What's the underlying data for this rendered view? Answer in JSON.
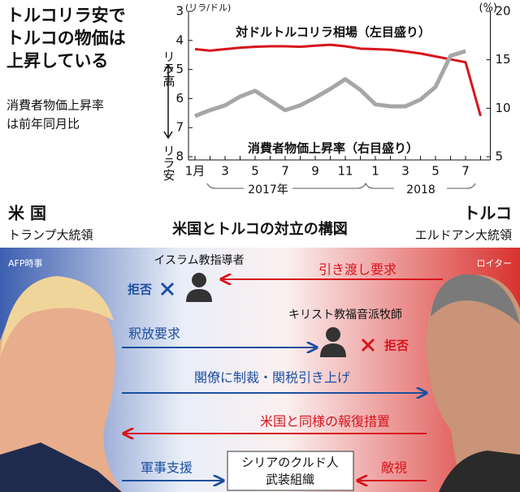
{
  "chart_data": {
    "type": "line",
    "title": [
      "トルコリラ安で",
      "トルコの物価は",
      "上昇している"
    ],
    "note": [
      "消費者物価上昇率",
      "は前年同月比"
    ],
    "y_axis_label": {
      "top": "リラ高",
      "bottom": "リラ安",
      "unit": "(リラ/ドル)"
    },
    "y2_axis_label": {
      "unit": "(%)"
    },
    "categories": [
      "1月",
      null,
      "3",
      null,
      "5",
      null,
      "7",
      null,
      "9",
      null,
      "11",
      null,
      "1",
      null,
      "3",
      null,
      "5",
      null,
      "7",
      null
    ],
    "years": [
      "2017年",
      "2018"
    ],
    "ylim": [
      3,
      8
    ],
    "y_reversed": true,
    "yticks": [
      3,
      4,
      5,
      6,
      7,
      8
    ],
    "y2lim": [
      5,
      20
    ],
    "y2ticks": [
      5,
      10,
      15,
      20
    ],
    "series": [
      {
        "name": "対ドルトルコリラ相場（左目盛り）",
        "color": "#d8141c",
        "axis": "y",
        "values": [
          4.3,
          4.35,
          4.3,
          4.25,
          4.22,
          4.2,
          4.2,
          4.22,
          4.18,
          4.15,
          4.2,
          4.28,
          4.3,
          4.32,
          4.38,
          4.45,
          4.55,
          4.65,
          4.75,
          6.6
        ]
      },
      {
        "name": "消費者物価上昇率（右目盛り）",
        "color": "#a6a6a6",
        "axis": "y2",
        "values": [
          9.2,
          9.8,
          10.3,
          11.2,
          11.8,
          10.8,
          9.8,
          10.3,
          11.1,
          12.0,
          13.0,
          11.9,
          10.4,
          10.2,
          10.2,
          10.9,
          12.2,
          15.4,
          15.9,
          null
        ]
      }
    ]
  },
  "diagram": {
    "title": "米国とトルコの対立の構図",
    "left": {
      "country": "米 国",
      "leader": "トランプ大統領",
      "credit": "AFP時事"
    },
    "right": {
      "country": "トルコ",
      "leader": "エルドアン大統領",
      "credit": "ロイター"
    },
    "nodes": [
      {
        "label": "イスラム教指導者"
      },
      {
        "label": "キリスト教福音派牧師"
      },
      {
        "label": [
          "シリアのクルド人",
          "武装組織"
        ]
      }
    ],
    "arrows": [
      {
        "label": "引き渡し要求"
      },
      {
        "label": "釈放要求"
      },
      {
        "label": "閣僚に制裁・関税引き上げ"
      },
      {
        "label": "米国と同様の報復措置"
      },
      {
        "label": "軍事支援"
      },
      {
        "label": "敵視"
      }
    ],
    "refusals": [
      "拒否",
      "拒否"
    ]
  }
}
